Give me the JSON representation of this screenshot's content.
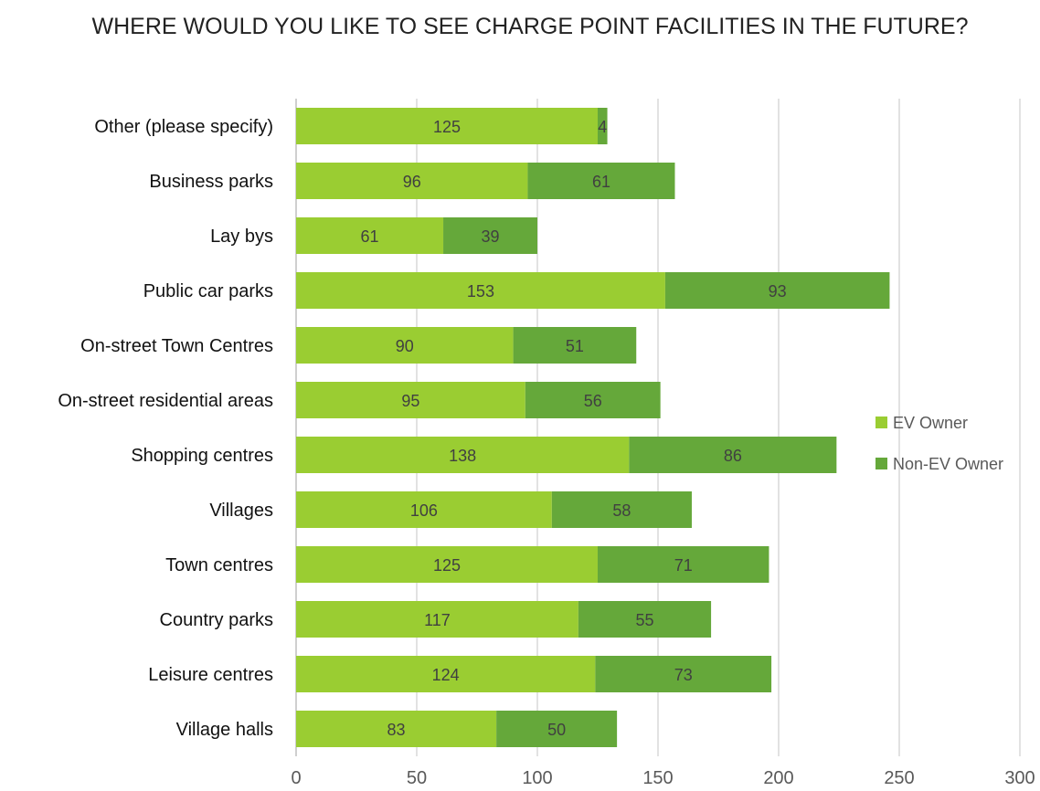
{
  "chart_data": {
    "type": "bar",
    "orientation": "horizontal",
    "stacked": true,
    "title": "WHERE WOULD YOU LIKE TO SEE CHARGE POINT FACILITIES IN THE FUTURE?",
    "xlabel": "",
    "ylabel": "",
    "xlim": [
      0,
      300
    ],
    "x_ticks": [
      0,
      50,
      100,
      150,
      200,
      250,
      300
    ],
    "grid": "vertical",
    "legend_position": "right",
    "categories": [
      "Other (please specify)",
      "Business parks",
      "Lay bys",
      "Public car parks",
      "On-street Town Centres",
      "On-street residential areas",
      "Shopping centres",
      "Villages",
      "Town centres",
      "Country parks",
      "Leisure centres",
      "Village halls"
    ],
    "series": [
      {
        "name": "EV Owner",
        "color": "#9ACD32",
        "values": [
          125,
          96,
          61,
          153,
          90,
          95,
          138,
          106,
          125,
          117,
          124,
          83
        ]
      },
      {
        "name": "Non-EV Owner",
        "color": "#65A83A",
        "values": [
          4,
          61,
          39,
          93,
          51,
          56,
          86,
          58,
          71,
          55,
          73,
          50
        ]
      }
    ]
  }
}
